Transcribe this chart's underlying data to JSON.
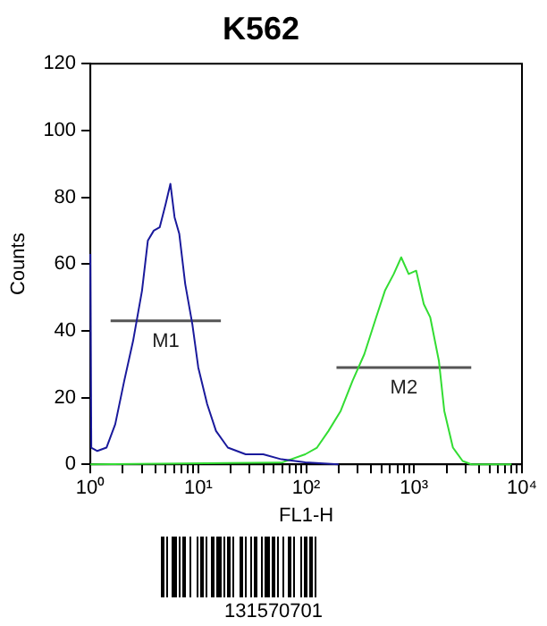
{
  "chart_data": {
    "type": "line",
    "title": "K562",
    "xlabel": "FL1-H",
    "ylabel": "Counts",
    "log": "x",
    "grid": false,
    "legend": false,
    "marker": "none",
    "xlim": [
      1,
      10000
    ],
    "xticks": [
      {
        "value": 1,
        "label": "10⁰"
      },
      {
        "value": 2,
        "label": null
      },
      {
        "value": 3,
        "label": null
      },
      {
        "value": 4,
        "label": null
      },
      {
        "value": 5,
        "label": null
      },
      {
        "value": 6,
        "label": null
      },
      {
        "value": 7,
        "label": null
      },
      {
        "value": 8,
        "label": null
      },
      {
        "value": 9,
        "label": null
      },
      {
        "value": 10,
        "label": "10¹"
      },
      {
        "value": 20,
        "label": null
      },
      {
        "value": 30,
        "label": null
      },
      {
        "value": 40,
        "label": null
      },
      {
        "value": 50,
        "label": null
      },
      {
        "value": 60,
        "label": null
      },
      {
        "value": 70,
        "label": null
      },
      {
        "value": 80,
        "label": null
      },
      {
        "value": 90,
        "label": null
      },
      {
        "value": 100,
        "label": "10²"
      },
      {
        "value": 200,
        "label": null
      },
      {
        "value": 300,
        "label": null
      },
      {
        "value": 400,
        "label": null
      },
      {
        "value": 500,
        "label": null
      },
      {
        "value": 600,
        "label": null
      },
      {
        "value": 700,
        "label": null
      },
      {
        "value": 800,
        "label": null
      },
      {
        "value": 900,
        "label": null
      },
      {
        "value": 1000,
        "label": "10³"
      },
      {
        "value": 2000,
        "label": null
      },
      {
        "value": 3000,
        "label": null
      },
      {
        "value": 4000,
        "label": null
      },
      {
        "value": 5000,
        "label": null
      },
      {
        "value": 6000,
        "label": null
      },
      {
        "value": 7000,
        "label": null
      },
      {
        "value": 8000,
        "label": null
      },
      {
        "value": 9000,
        "label": null
      },
      {
        "value": 10000,
        "label": "10⁴"
      }
    ],
    "ylim": [
      0,
      120
    ],
    "yticks": [
      0,
      20,
      40,
      60,
      80,
      100,
      120
    ],
    "series": [
      {
        "color": "#1a1a9c",
        "x": [
          1,
          1.02,
          1.16,
          1.41,
          1.7,
          2.06,
          2.49,
          3.01,
          3.41,
          3.87,
          4.39,
          4.99,
          5.52,
          6.03,
          6.67,
          7.57,
          8.81,
          10,
          12.1,
          14.6,
          18.8,
          27.5,
          40,
          59,
          98,
          200
        ],
        "values": [
          63,
          5,
          4,
          5,
          12,
          25,
          37,
          52,
          67,
          70,
          71,
          78,
          84,
          74,
          69,
          54,
          42,
          29,
          18,
          10,
          5,
          3,
          3,
          1.5,
          0.6,
          0
        ]
      },
      {
        "color": "#33dd33",
        "x": [
          1,
          59,
          98,
          126,
          161,
          209,
          269,
          346,
          445,
          537,
          648,
          760,
          891,
          1047,
          1230,
          1413,
          1698,
          1905,
          2291,
          2818,
          3388,
          8000
        ],
        "values": [
          0,
          0.5,
          3,
          5,
          10,
          16,
          25,
          33,
          44,
          52,
          57,
          62,
          57,
          58,
          48,
          44,
          31,
          16,
          5,
          1,
          0,
          0
        ]
      },
      {
        "name": "M1",
        "color": "#555555",
        "x": [
          1.54,
          16.2
        ],
        "values": [
          43,
          43
        ]
      },
      {
        "name": "M2",
        "color": "#555555",
        "x": [
          191,
          3388
        ],
        "values": [
          29,
          29
        ]
      }
    ],
    "annotations": [
      "131570701"
    ]
  }
}
